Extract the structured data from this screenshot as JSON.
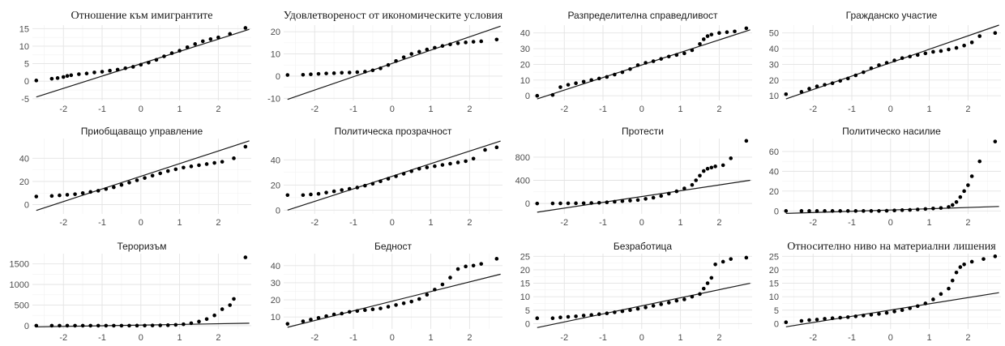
{
  "chart_data": [
    {
      "type": "scatter",
      "title": "Отношение към имигрантите",
      "title_font": "serif",
      "x_ticks": [
        "-2",
        "-1",
        "0",
        "1",
        "2"
      ],
      "y_ticks": [
        "-5",
        "0",
        "5",
        "10",
        "15"
      ],
      "ylim": [
        -5.5,
        16
      ],
      "ref_line": {
        "x": [
          -2.7,
          2.8
        ],
        "y": [
          -4.5,
          14.8
        ]
      },
      "points": {
        "x": [
          -2.7,
          -2.3,
          -2.15,
          -2.0,
          -1.9,
          -1.8,
          -1.6,
          -1.4,
          -1.2,
          -1.0,
          -0.8,
          -0.6,
          -0.4,
          -0.2,
          0.0,
          0.2,
          0.4,
          0.6,
          0.8,
          1.0,
          1.2,
          1.4,
          1.6,
          1.8,
          2.0,
          2.3,
          2.7
        ],
        "y": [
          0.2,
          0.7,
          0.9,
          1.2,
          1.5,
          1.7,
          2.0,
          2.2,
          2.5,
          2.7,
          3.0,
          3.3,
          3.7,
          4.1,
          4.7,
          5.3,
          6.1,
          7.1,
          8.0,
          8.7,
          9.7,
          10.6,
          11.4,
          12.0,
          12.5,
          13.5,
          15.2
        ]
      }
    },
    {
      "type": "scatter",
      "title": "Удовлетвореност от икономическите условия",
      "title_font": "serif",
      "x_ticks": [
        "-2",
        "-1",
        "0",
        "1",
        "2"
      ],
      "y_ticks": [
        "-10",
        "0",
        "10",
        "20"
      ],
      "ylim": [
        -11,
        23
      ],
      "ref_line": {
        "x": [
          -2.7,
          2.8
        ],
        "y": [
          -10.5,
          22.5
        ]
      },
      "points": {
        "x": [
          -2.7,
          -2.3,
          -2.1,
          -1.9,
          -1.7,
          -1.5,
          -1.3,
          -1.1,
          -0.9,
          -0.7,
          -0.5,
          -0.3,
          -0.1,
          0.1,
          0.3,
          0.5,
          0.7,
          0.9,
          1.1,
          1.3,
          1.5,
          1.7,
          1.9,
          2.1,
          2.3,
          2.7
        ],
        "y": [
          0.5,
          0.6,
          0.8,
          1.0,
          1.2,
          1.3,
          1.5,
          1.6,
          1.8,
          2.0,
          2.6,
          3.5,
          5.0,
          6.8,
          8.5,
          10.0,
          11.0,
          12.0,
          12.8,
          13.6,
          14.3,
          14.8,
          15.2,
          15.5,
          15.7,
          16.5
        ]
      }
    },
    {
      "type": "scatter",
      "title": "Разпределителна справедливост",
      "title_font": "sans",
      "x_ticks": [
        "-2",
        "-1",
        "0",
        "1",
        "2"
      ],
      "y_ticks": [
        "0",
        "10",
        "20",
        "30",
        "40"
      ],
      "ylim": [
        -3,
        45
      ],
      "ref_line": {
        "x": [
          -2.7,
          2.8
        ],
        "y": [
          -2,
          42
        ]
      },
      "points": {
        "x": [
          -2.7,
          -2.3,
          -2.1,
          -1.9,
          -1.7,
          -1.5,
          -1.3,
          -1.1,
          -0.9,
          -0.7,
          -0.5,
          -0.3,
          -0.1,
          0.1,
          0.3,
          0.5,
          0.7,
          0.9,
          1.1,
          1.3,
          1.5,
          1.6,
          1.7,
          1.8,
          2.0,
          2.2,
          2.4,
          2.7
        ],
        "y": [
          0,
          0.5,
          5.5,
          7,
          8,
          9,
          10,
          11,
          12,
          13.5,
          15,
          17,
          19.5,
          21,
          22,
          23.5,
          25,
          26,
          27,
          29,
          33,
          36,
          38,
          39,
          40,
          40.5,
          41,
          43
        ]
      }
    },
    {
      "type": "scatter",
      "title": "Гражданско участие",
      "title_font": "sans",
      "x_ticks": [
        "-2",
        "-1",
        "0",
        "1",
        "2"
      ],
      "y_ticks": [
        "10",
        "20",
        "30",
        "40",
        "50"
      ],
      "ylim": [
        7,
        55
      ],
      "ref_line": {
        "x": [
          -2.7,
          2.8
        ],
        "y": [
          8,
          55
        ]
      },
      "points": {
        "x": [
          -2.7,
          -2.3,
          -2.1,
          -1.9,
          -1.7,
          -1.5,
          -1.3,
          -1.1,
          -0.9,
          -0.7,
          -0.5,
          -0.3,
          -0.1,
          0.1,
          0.3,
          0.5,
          0.7,
          0.9,
          1.1,
          1.3,
          1.5,
          1.7,
          1.9,
          2.1,
          2.3,
          2.7
        ],
        "y": [
          11,
          12.5,
          14.5,
          16,
          17,
          18,
          19.5,
          21,
          23,
          25,
          27.5,
          29.5,
          31,
          32.5,
          34,
          35,
          36,
          37,
          38,
          38.5,
          39.5,
          40.5,
          42,
          44,
          48,
          50
        ]
      }
    },
    {
      "type": "scatter",
      "title": "Приобщаващо управление",
      "title_font": "sans",
      "x_ticks": [
        "-2",
        "-1",
        "0",
        "1",
        "2"
      ],
      "y_ticks": [
        "0",
        "20",
        "40"
      ],
      "ylim": [
        -8,
        57
      ],
      "ref_line": {
        "x": [
          -2.7,
          2.8
        ],
        "y": [
          -5,
          55
        ]
      },
      "points": {
        "x": [
          -2.7,
          -2.3,
          -2.1,
          -1.9,
          -1.7,
          -1.5,
          -1.3,
          -1.1,
          -0.9,
          -0.7,
          -0.5,
          -0.3,
          -0.1,
          0.1,
          0.3,
          0.5,
          0.7,
          0.9,
          1.1,
          1.3,
          1.5,
          1.7,
          1.9,
          2.1,
          2.4,
          2.7
        ],
        "y": [
          7,
          7.5,
          8,
          8.5,
          9,
          10,
          11,
          12,
          13.5,
          15,
          17,
          19,
          21,
          23,
          25,
          27,
          29,
          30.5,
          32,
          33,
          34,
          35,
          36,
          37,
          40,
          50
        ]
      }
    },
    {
      "type": "scatter",
      "title": "Политическа прозрачност",
      "title_font": "sans",
      "x_ticks": [
        "-2",
        "-1",
        "0",
        "1",
        "2"
      ],
      "y_ticks": [
        "0",
        "20",
        "40"
      ],
      "ylim": [
        -3,
        57
      ],
      "ref_line": {
        "x": [
          -2.7,
          2.8
        ],
        "y": [
          0,
          55
        ]
      },
      "points": {
        "x": [
          -2.7,
          -2.3,
          -2.1,
          -1.9,
          -1.7,
          -1.5,
          -1.3,
          -1.1,
          -0.9,
          -0.7,
          -0.5,
          -0.3,
          -0.1,
          0.1,
          0.3,
          0.5,
          0.7,
          0.9,
          1.1,
          1.3,
          1.5,
          1.7,
          1.9,
          2.1,
          2.4,
          2.7
        ],
        "y": [
          12,
          12,
          12.5,
          13,
          14,
          15,
          16,
          17,
          18,
          19.5,
          21,
          23,
          25,
          27,
          29,
          31,
          33,
          34,
          35,
          36,
          37,
          38,
          39,
          41,
          48,
          50
        ]
      }
    },
    {
      "type": "scatter",
      "title": "Протести",
      "title_font": "sans",
      "x_ticks": [
        "-2",
        "-1",
        "0",
        "1",
        "2"
      ],
      "y_ticks": [
        "0",
        "400",
        "800"
      ],
      "ylim": [
        -180,
        1120
      ],
      "ref_line": {
        "x": [
          -2.7,
          2.8
        ],
        "y": [
          -150,
          400
        ]
      },
      "points": {
        "x": [
          -2.7,
          -2.3,
          -2.1,
          -1.9,
          -1.7,
          -1.5,
          -1.3,
          -1.1,
          -0.9,
          -0.7,
          -0.5,
          -0.3,
          -0.1,
          0.1,
          0.3,
          0.5,
          0.7,
          0.9,
          1.1,
          1.3,
          1.4,
          1.5,
          1.6,
          1.7,
          1.8,
          1.9,
          2.1,
          2.3,
          2.7
        ],
        "y": [
          0,
          1,
          2,
          3,
          4,
          5,
          8,
          12,
          20,
          30,
          40,
          50,
          60,
          80,
          100,
          130,
          170,
          210,
          260,
          320,
          400,
          480,
          560,
          600,
          620,
          640,
          660,
          780,
          1080
        ]
      }
    },
    {
      "type": "scatter",
      "title": "Политическо насилие",
      "title_font": "sans",
      "x_ticks": [
        "-2",
        "-1",
        "0",
        "1",
        "2"
      ],
      "y_ticks": [
        "0",
        "20",
        "40",
        "60"
      ],
      "ylim": [
        -3,
        73
      ],
      "ref_line": {
        "x": [
          -2.7,
          2.8
        ],
        "y": [
          -2.5,
          4.5
        ]
      },
      "points": {
        "x": [
          -2.7,
          -2.3,
          -2.1,
          -1.9,
          -1.7,
          -1.5,
          -1.3,
          -1.1,
          -0.9,
          -0.7,
          -0.5,
          -0.3,
          -0.1,
          0.1,
          0.3,
          0.5,
          0.7,
          0.9,
          1.1,
          1.3,
          1.5,
          1.6,
          1.7,
          1.8,
          1.9,
          2.0,
          2.1,
          2.3,
          2.7
        ],
        "y": [
          0,
          0,
          0,
          0,
          0,
          0,
          0,
          0,
          0,
          0,
          0,
          0,
          0.2,
          0.5,
          0.8,
          1,
          1.5,
          2,
          2.5,
          3,
          4,
          6,
          9,
          14,
          20,
          26,
          35,
          50,
          70
        ]
      }
    },
    {
      "type": "scatter",
      "title": "Тероризъм",
      "title_font": "sans",
      "x_ticks": [
        "-2",
        "-1",
        "0",
        "1",
        "2"
      ],
      "y_ticks": [
        "0",
        "500",
        "1000",
        "1500"
      ],
      "ylim": [
        -80,
        1750
      ],
      "ref_line": {
        "x": [
          -2.7,
          2.8
        ],
        "y": [
          -30,
          60
        ]
      },
      "points": {
        "x": [
          -2.7,
          -2.3,
          -2.1,
          -1.9,
          -1.7,
          -1.5,
          -1.3,
          -1.1,
          -0.9,
          -0.7,
          -0.5,
          -0.3,
          -0.1,
          0.1,
          0.3,
          0.5,
          0.7,
          0.9,
          1.1,
          1.3,
          1.5,
          1.7,
          1.9,
          2.1,
          2.3,
          2.4,
          2.7
        ],
        "y": [
          0,
          0,
          0,
          0,
          0,
          0,
          0,
          0,
          0,
          0,
          0,
          1,
          2,
          3,
          5,
          8,
          12,
          20,
          35,
          60,
          100,
          160,
          250,
          400,
          500,
          650,
          1660
        ]
      }
    },
    {
      "type": "scatter",
      "title": "Бедност",
      "title_font": "sans",
      "x_ticks": [
        "-2",
        "-1",
        "0",
        "1",
        "2"
      ],
      "y_ticks": [
        "10",
        "20",
        "30",
        "40"
      ],
      "ylim": [
        3,
        47
      ],
      "ref_line": {
        "x": [
          -2.7,
          2.8
        ],
        "y": [
          4,
          35
        ]
      },
      "points": {
        "x": [
          -2.7,
          -2.3,
          -2.1,
          -1.9,
          -1.7,
          -1.5,
          -1.3,
          -1.1,
          -0.9,
          -0.7,
          -0.5,
          -0.3,
          -0.1,
          0.1,
          0.3,
          0.5,
          0.7,
          0.9,
          1.1,
          1.3,
          1.5,
          1.7,
          1.9,
          2.1,
          2.3,
          2.7
        ],
        "y": [
          6,
          7.5,
          8.5,
          9.5,
          10.5,
          11.5,
          12,
          13,
          13.5,
          14,
          14.5,
          15,
          16,
          17,
          18,
          19,
          20.5,
          23,
          26,
          29,
          33,
          38,
          39.5,
          40,
          41,
          44
        ]
      }
    },
    {
      "type": "scatter",
      "title": "Безработица",
      "title_font": "sans",
      "x_ticks": [
        "-2",
        "-1",
        "0",
        "1",
        "2"
      ],
      "y_ticks": [
        "0",
        "5",
        "10",
        "15",
        "20",
        "25"
      ],
      "ylim": [
        -2,
        26
      ],
      "ref_line": {
        "x": [
          -2.7,
          2.8
        ],
        "y": [
          -1.5,
          15
        ]
      },
      "points": {
        "x": [
          -2.7,
          -2.3,
          -2.1,
          -1.9,
          -1.7,
          -1.5,
          -1.3,
          -1.1,
          -0.9,
          -0.7,
          -0.5,
          -0.3,
          -0.1,
          0.1,
          0.3,
          0.5,
          0.7,
          0.9,
          1.1,
          1.3,
          1.5,
          1.6,
          1.7,
          1.8,
          1.9,
          2.1,
          2.3,
          2.7
        ],
        "y": [
          2,
          2,
          2.3,
          2.5,
          2.7,
          3,
          3.2,
          3.5,
          3.8,
          4.2,
          4.6,
          5,
          5.5,
          6,
          6.6,
          7.2,
          7.8,
          8.5,
          9,
          10,
          11,
          13,
          15,
          17,
          22,
          23,
          24,
          24.5
        ]
      }
    },
    {
      "type": "scatter",
      "title": "Относително ниво на материални лишения",
      "title_font": "serif",
      "x_ticks": [
        "-2",
        "-1",
        "0",
        "1",
        "2"
      ],
      "y_ticks": [
        "0",
        "5",
        "10",
        "15",
        "20",
        "25"
      ],
      "ylim": [
        -2,
        26
      ],
      "ref_line": {
        "x": [
          -2.7,
          2.8
        ],
        "y": [
          -1.2,
          11.5
        ]
      },
      "points": {
        "x": [
          -2.7,
          -2.3,
          -2.1,
          -1.9,
          -1.7,
          -1.5,
          -1.3,
          -1.1,
          -0.9,
          -0.7,
          -0.5,
          -0.3,
          -0.1,
          0.1,
          0.3,
          0.5,
          0.7,
          0.9,
          1.1,
          1.3,
          1.5,
          1.6,
          1.7,
          1.8,
          1.9,
          2.1,
          2.4,
          2.7
        ],
        "y": [
          0.5,
          1,
          1.3,
          1.5,
          1.8,
          2,
          2.2,
          2.4,
          2.7,
          3,
          3.3,
          3.6,
          4,
          4.5,
          5,
          5.7,
          6.5,
          7.5,
          9,
          11,
          13,
          16,
          19,
          21,
          22,
          23,
          24,
          25
        ]
      }
    }
  ]
}
